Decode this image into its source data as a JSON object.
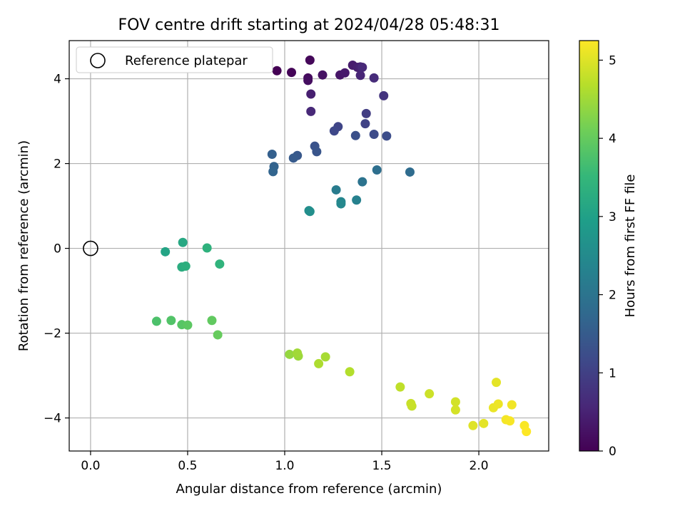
{
  "chart_data": {
    "type": "scatter",
    "title": "FOV centre drift starting at 2024/04/28 05:48:31",
    "xlabel": "Angular distance from reference (arcmin)",
    "ylabel": "Rotation from reference (arcmin)",
    "xlim": [
      -0.11,
      2.36
    ],
    "ylim": [
      -4.78,
      4.9
    ],
    "xticks": [
      0.0,
      0.5,
      1.0,
      1.5,
      2.0
    ],
    "xtick_labels": [
      "0.0",
      "0.5",
      "1.0",
      "1.5",
      "2.0"
    ],
    "yticks": [
      -4,
      -2,
      0,
      2,
      4
    ],
    "ytick_labels": [
      "−4",
      "−2",
      "0",
      "2",
      "4"
    ],
    "grid": true,
    "legend": {
      "placement": "upper-left",
      "entries": [
        "Reference platepar"
      ]
    },
    "reference_point": {
      "x": 0.0,
      "y": 0.0,
      "label": "Reference platepar"
    },
    "colorbar": {
      "label": "Hours from first FF file",
      "colormap": "viridis",
      "range": [
        0,
        5.25
      ],
      "ticks": [
        0,
        1,
        2,
        3,
        4,
        5
      ],
      "tick_labels": [
        "0",
        "1",
        "2",
        "3",
        "4",
        "5"
      ],
      "stops": [
        "#440154",
        "#482878",
        "#3e4989",
        "#31688e",
        "#26828e",
        "#1f9e89",
        "#35b779",
        "#6ece58",
        "#b5de2b",
        "#fde725"
      ]
    },
    "series": [
      {
        "x": [
          0.96,
          1.035,
          1.13,
          1.12,
          1.12,
          1.195,
          1.135,
          1.135,
          1.285,
          1.31,
          1.35,
          1.375,
          1.39,
          1.39,
          1.4,
          1.46,
          1.51,
          1.42,
          1.415,
          1.46,
          1.525,
          1.275,
          1.255,
          1.365,
          1.155,
          1.165,
          1.065,
          1.045,
          0.935,
          0.945,
          0.94,
          1.645,
          1.475,
          1.4,
          1.265,
          1.29,
          1.29,
          1.37,
          1.125,
          1.13,
          0.475,
          0.385,
          0.6,
          0.47,
          0.49,
          0.665,
          0.34,
          0.415,
          0.47,
          0.5,
          0.625,
          0.655,
          1.025,
          1.07,
          1.065,
          1.21,
          1.175,
          1.335,
          1.595,
          1.655,
          1.65,
          1.745,
          1.88,
          1.88,
          2.09,
          1.97,
          2.025,
          2.075,
          2.1,
          2.17,
          2.14,
          2.16,
          2.235,
          2.245
        ],
        "y": [
          4.19,
          4.15,
          4.44,
          4.02,
          3.96,
          4.09,
          3.64,
          3.23,
          4.09,
          4.14,
          4.32,
          4.27,
          4.28,
          4.08,
          4.27,
          4.02,
          3.6,
          3.18,
          2.94,
          2.69,
          2.65,
          2.87,
          2.77,
          2.66,
          2.41,
          2.28,
          2.19,
          2.13,
          2.22,
          1.93,
          1.81,
          1.8,
          1.85,
          1.57,
          1.38,
          1.1,
          1.05,
          1.14,
          0.89,
          0.87,
          0.14,
          -0.08,
          0.01,
          -0.44,
          -0.42,
          -0.37,
          -1.72,
          -1.7,
          -1.8,
          -1.81,
          -1.7,
          -2.04,
          -2.5,
          -2.54,
          -2.47,
          -2.56,
          -2.72,
          -2.91,
          -3.27,
          -3.72,
          -3.66,
          -3.43,
          -3.62,
          -3.81,
          -3.16,
          -4.18,
          -4.13,
          -3.76,
          -3.67,
          -3.69,
          -4.04,
          -4.07,
          -4.18,
          -4.32
        ],
        "hours": [
          0.0,
          0.05,
          0.1,
          0.15,
          0.2,
          0.25,
          0.45,
          0.6,
          0.3,
          0.35,
          0.4,
          0.45,
          0.5,
          0.55,
          0.6,
          0.65,
          0.8,
          0.95,
          1.05,
          1.2,
          1.25,
          1.1,
          1.15,
          1.3,
          1.35,
          1.4,
          1.45,
          1.5,
          1.6,
          1.65,
          1.7,
          1.85,
          1.9,
          2.0,
          2.2,
          2.4,
          2.45,
          2.3,
          2.55,
          2.6,
          3.15,
          3.05,
          3.35,
          3.25,
          3.3,
          3.4,
          3.75,
          3.8,
          3.85,
          3.9,
          3.95,
          4.0,
          4.4,
          4.45,
          4.5,
          4.55,
          4.6,
          4.65,
          4.75,
          4.8,
          4.82,
          4.85,
          4.9,
          4.92,
          5.05,
          5.0,
          5.05,
          5.1,
          5.12,
          5.15,
          5.18,
          5.2,
          5.22,
          5.25
        ]
      }
    ]
  }
}
